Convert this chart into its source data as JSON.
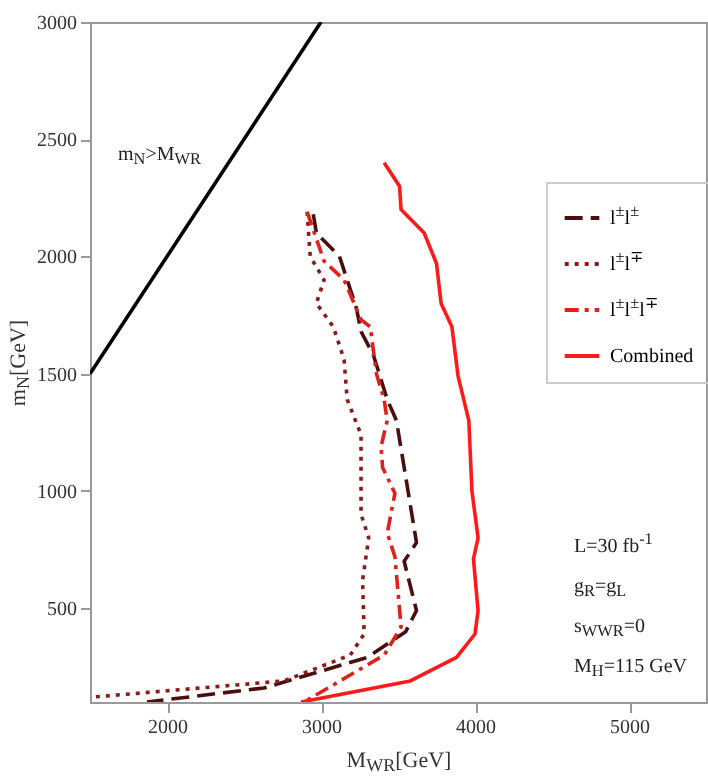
{
  "chart_data": {
    "type": "line",
    "xlabel": "M$_{WR}$[GeV]",
    "ylabel": "m$_{N}$[GeV]",
    "xlim": [
      1500,
      5500
    ],
    "xticks": [
      2000,
      3000,
      4000,
      5000
    ],
    "ylim": [
      100,
      3000
    ],
    "yticks": [
      500,
      1000,
      1500,
      2000,
      2500,
      3000
    ],
    "legend": "right",
    "grid": false,
    "annotations": [
      "m$_{N}$>M$_{WR}$",
      "L=30 fb$^{-1}$",
      "g$_{R}$=g$_{L}$",
      "s$_{WWR}$=0",
      "M$_{H}$=115 GeV"
    ],
    "series": [
      {
        "color": "#000000",
        "line_style": "solid",
        "x": [
          1500,
          3000
        ],
        "values": [
          1500,
          3000
        ]
      },
      {
        "name": "l$^{±}$l$^{±}$",
        "color": "#4a0e0e",
        "line_style": "dashed",
        "x": [
          2950,
          2970,
          3060,
          3120,
          3230,
          3260,
          3340,
          3430,
          3490,
          3540,
          3620,
          3540,
          3620,
          3550,
          3300,
          2630,
          1870
        ],
        "values": [
          2180,
          2100,
          2040,
          2000,
          1780,
          1680,
          1580,
          1390,
          1300,
          1100,
          780,
          700,
          490,
          400,
          290,
          160,
          100
        ]
      },
      {
        "name": "l$^{±}$l$^{∓}$",
        "color": "#8b1a1a",
        "line_style": "dotted",
        "x": [
          2910,
          2930,
          3020,
          2970,
          3080,
          3150,
          3170,
          3260,
          3260,
          3310,
          3270,
          3280,
          3190,
          2760,
          1500
        ],
        "values": [
          2190,
          2000,
          1900,
          1800,
          1700,
          1560,
          1390,
          1240,
          900,
          800,
          620,
          390,
          300,
          190,
          120
        ]
      },
      {
        "name": "l$^{±}$l$^{±}$l$^{∓}$",
        "color": "#e0201b",
        "line_style": "dashdot",
        "x": [
          2910,
          3020,
          3150,
          3260,
          3320,
          3360,
          3410,
          3430,
          3390,
          3400,
          3480,
          3430,
          3480,
          3520,
          3410,
          2890
        ],
        "values": [
          2190,
          1980,
          1900,
          1730,
          1700,
          1500,
          1390,
          1300,
          1190,
          1100,
          990,
          820,
          720,
          420,
          300,
          100
        ]
      },
      {
        "name": "Combined",
        "color": "#ff1a1a",
        "line_style": "solid",
        "x": [
          3410,
          3510,
          3520,
          3670,
          3750,
          3780,
          3850,
          3890,
          3960,
          3980,
          4020,
          3990,
          4020,
          4000,
          3880,
          3580,
          2870
        ],
        "values": [
          2400,
          2300,
          2200,
          2100,
          1970,
          1800,
          1700,
          1490,
          1300,
          1000,
          800,
          710,
          490,
          390,
          290,
          190,
          100
        ]
      }
    ]
  }
}
